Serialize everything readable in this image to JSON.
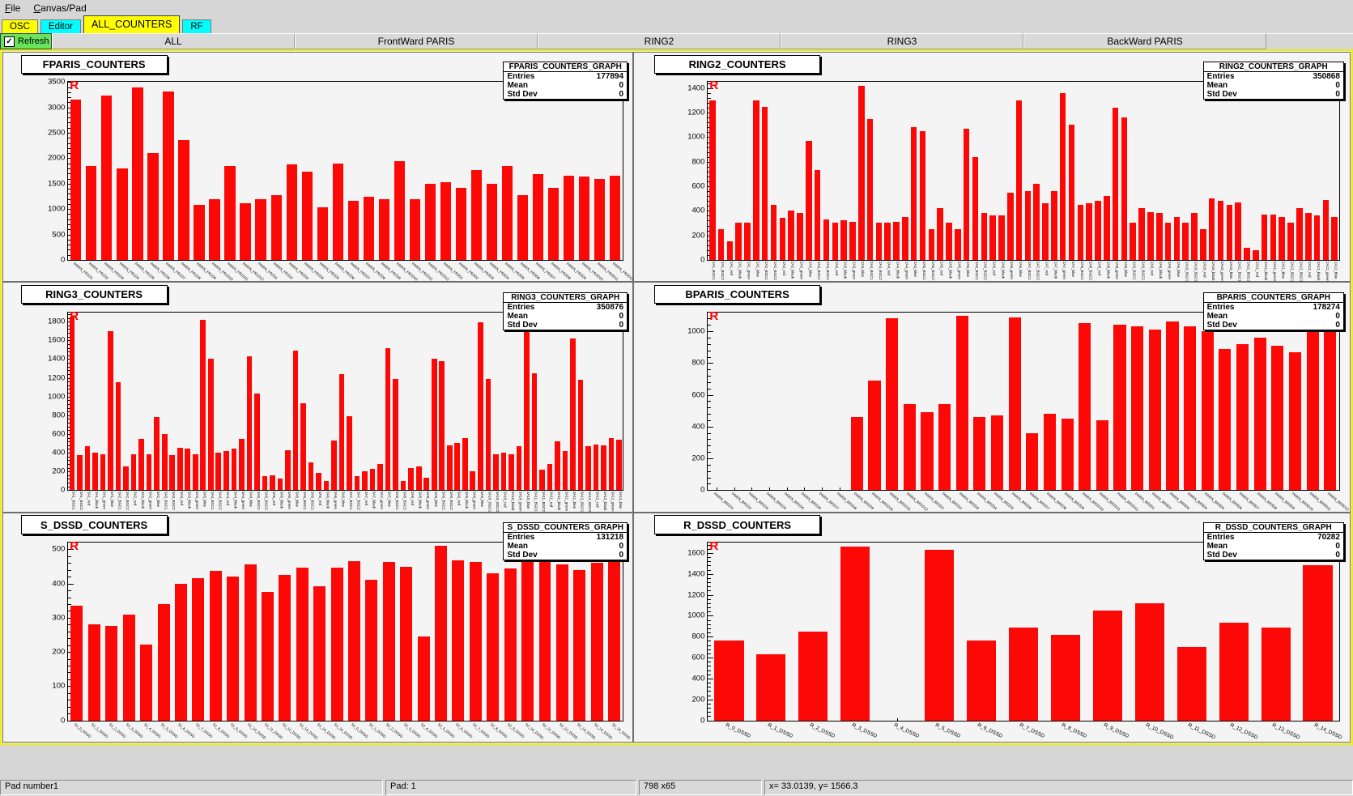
{
  "menu": {
    "items": [
      "File",
      "Canvas/Pad"
    ]
  },
  "tabs": [
    {
      "label": "OSC",
      "color": "#ffff00",
      "active": false
    },
    {
      "label": "Editor",
      "color": "#00ffff",
      "active": false
    },
    {
      "label": "ALL_COUNTERS",
      "color": "#ffff00",
      "active": true
    },
    {
      "label": "RF",
      "color": "#00ffff",
      "active": false
    }
  ],
  "refresh": {
    "label": "Refresh",
    "checked": true,
    "checkmark": "✓",
    "color": "#67e35d"
  },
  "subtabs": [
    "ALL",
    "FrontWard PARIS",
    "RING2",
    "RING3",
    "BackWard PARIS"
  ],
  "status_bar": {
    "cells": [
      "Pad number1",
      "Pad: 1",
      "798 x65",
      "x= 33.0139, y= 1566.3"
    ]
  },
  "colors": {
    "bar_red": "#fb0807",
    "canvas_highlight": "#f0f000",
    "tab_yellow": "#ffff00",
    "tab_cyan": "#00ffff"
  },
  "chart_data": [
    {
      "name": "FPARIS_COUNTERS",
      "type": "bar",
      "marker": "R",
      "bar_color": "#fb0807",
      "stats": {
        "title": "FPARIS_COUNTERS_GRAPH",
        "entries": "177894",
        "mean": "0",
        "std_dev": "0"
      },
      "ylim": [
        0,
        3500
      ],
      "ytick_step": 500,
      "label_style": "diagonal",
      "grid": false,
      "categories": [
        "PARIS_FR1D1",
        "PARIS_FR1D2",
        "PARIS_FR1D3",
        "PARIS_FR1D4",
        "PARIS_FR1D5",
        "PARIS_FR1D6",
        "PARIS_FR1D7",
        "PARIS_FR1D8",
        "PARIS_FR1D9",
        "PARIS_FR1D10",
        "PARIS_FR1D11",
        "PARIS_FR1D12",
        "PARIS_FR2D1",
        "PARIS_FR2D2",
        "PARIS_FR2D3",
        "PARIS_FR2D4",
        "PARIS_FR2D5",
        "PARIS_FR2D6",
        "PARIS_FR2D7",
        "PARIS_FR2D8",
        "PARIS_FR2D9",
        "PARIS_FR2D10",
        "PARIS_FR2D11",
        "PARIS_FR2D12",
        "PARIS_FR3D1",
        "PARIS_FR3D2",
        "PARIS_FR3D3",
        "PARIS_FR3D4",
        "PARIS_FR3D5",
        "PARIS_FR3D6",
        "PARIS_FR3D7",
        "PARIS_FR3D8",
        "PARIS_FR3D9",
        "PARIS_FR3D10",
        "PARIS_FR3D11",
        "PARIS_FR3D12"
      ],
      "values": [
        3150,
        1850,
        3230,
        1800,
        3390,
        2100,
        3310,
        2360,
        1090,
        1190,
        1840,
        1110,
        1190,
        1280,
        1880,
        1740,
        1030,
        1900,
        1170,
        1240,
        1200,
        1950,
        1190,
        1500,
        1530,
        1410,
        1770,
        1500,
        1840,
        1280,
        1690,
        1420,
        1650,
        1640,
        1600,
        1650
      ]
    },
    {
      "name": "RING2_COUNTERS",
      "type": "bar",
      "marker": "R",
      "bar_color": "#fb0807",
      "stats": {
        "title": "RING2_COUNTERS_GRAPH",
        "entries": "350868",
        "mean": "0",
        "std_dev": "0"
      },
      "ylim": [
        0,
        1450
      ],
      "ytick_step": 200,
      "label_style": "vertical",
      "grid": false,
      "categories": [
        "2A1_BGC1",
        "2A1_BGC2",
        "2A1_red",
        "2A1_black",
        "2A1_green",
        "2A1_blue",
        "2A2_BGC1",
        "2A2_BGC2",
        "2A2_red",
        "2A2_black",
        "2A2_green",
        "2A2_blue",
        "2A3_BGC1",
        "2A3_BGC2",
        "2A3_red",
        "2A3_black",
        "2A3_green",
        "2A3_blue",
        "2A4_BGC1",
        "2A4_BGC2",
        "2A4_red",
        "2A4_black",
        "2A4_green",
        "2A4_blue",
        "2A5_BGC1",
        "2A5_BGC2",
        "2A5_red",
        "2A5_black",
        "2A5_green",
        "2A5_blue",
        "2A6_BGC1",
        "2A6_BGC2",
        "2A6_red",
        "2A6_black",
        "2A6_green",
        "2A6_blue",
        "2A7_BGC1",
        "2A7_BGC2",
        "2A7_red",
        "2A7_black",
        "2A7_green",
        "2A7_blue",
        "2A8_BGC1",
        "2A8_BGC2",
        "2A8_red",
        "2A8_black",
        "2A8_green",
        "2A8_blue",
        "2A9_BGC1",
        "2A9_BGC2",
        "2A9_red",
        "2A9_black",
        "2A9_green",
        "2A9_blue",
        "2A10_BGC1",
        "2A10_BGC2",
        "2A10_red",
        "2A10_black",
        "2A10_green",
        "2A10_blue",
        "2A11_BGC1",
        "2A11_BGC2",
        "2A11_red",
        "2A11_black",
        "2A11_green",
        "2A11_blue",
        "2A12_BGC1",
        "2A12_BGC2",
        "2A12_red",
        "2A12_black",
        "2A12_green",
        "2A12_blue"
      ],
      "values": [
        1300,
        250,
        150,
        300,
        300,
        1300,
        1250,
        450,
        340,
        400,
        380,
        970,
        730,
        330,
        300,
        320,
        310,
        1420,
        1150,
        300,
        300,
        310,
        350,
        1080,
        1050,
        250,
        420,
        300,
        250,
        1070,
        840,
        380,
        360,
        360,
        550,
        1300,
        560,
        620,
        460,
        560,
        1360,
        1100,
        450,
        460,
        480,
        520,
        1240,
        1160,
        300,
        420,
        390,
        380,
        300,
        350,
        300,
        380,
        250,
        500,
        480,
        450,
        470,
        100,
        80,
        370,
        370,
        350,
        300,
        420,
        380,
        360,
        490,
        350
      ]
    },
    {
      "name": "RING3_COUNTERS",
      "type": "bar",
      "marker": "R",
      "bar_color": "#fb0807",
      "stats": {
        "title": "RING3_COUNTERS_GRAPH",
        "entries": "350876",
        "mean": "0",
        "std_dev": "0"
      },
      "ylim": [
        0,
        1900
      ],
      "ytick_step": 200,
      "label_style": "vertical",
      "grid": false,
      "categories": [
        "3A1_BGC1",
        "3A1_BGC2",
        "3A1_red",
        "3A1_black",
        "3A1_green",
        "3A1_blue",
        "3A2_BGC1",
        "3A2_BGC2",
        "3A2_red",
        "3A2_black",
        "3A2_green",
        "3A2_blue",
        "3A3_BGC1",
        "3A3_BGC2",
        "3A3_red",
        "3A3_black",
        "3A3_green",
        "3A3_blue",
        "3A4_BGC1",
        "3A4_BGC2",
        "3A4_red",
        "3A4_black",
        "3A4_green",
        "3A4_blue",
        "3A5_BGC1",
        "3A5_BGC2",
        "3A5_red",
        "3A5_black",
        "3A5_green",
        "3A5_blue",
        "3A6_BGC1",
        "3A6_BGC2",
        "3A6_red",
        "3A6_black",
        "3A6_green",
        "3A6_blue",
        "3A7_BGC1",
        "3A7_BGC2",
        "3A7_red",
        "3A7_black",
        "3A7_green",
        "3A7_blue",
        "3A8_BGC1",
        "3A8_BGC2",
        "3A8_red",
        "3A8_black",
        "3A8_green",
        "3A8_blue",
        "3A9_BGC1",
        "3A9_BGC2",
        "3A9_red",
        "3A9_black",
        "3A9_green",
        "3A9_blue",
        "3A10_BGC1",
        "3A10_BGC2",
        "3A10_red",
        "3A10_black",
        "3A10_green",
        "3A10_blue",
        "3A11_BGC1",
        "3A11_BGC2",
        "3A11_red",
        "3A11_black",
        "3A11_green",
        "3A11_blue",
        "3A12_BGC1",
        "3A12_BGC2",
        "3A12_red",
        "3A12_black",
        "3A12_green",
        "3A12_blue"
      ],
      "values": [
        1850,
        370,
        470,
        400,
        380,
        1700,
        1150,
        250,
        380,
        550,
        380,
        780,
        600,
        370,
        450,
        440,
        380,
        1820,
        1400,
        400,
        420,
        440,
        550,
        1430,
        1030,
        150,
        160,
        120,
        430,
        1490,
        930,
        300,
        180,
        100,
        530,
        1240,
        790,
        150,
        200,
        230,
        280,
        1520,
        1190,
        100,
        240,
        250,
        130,
        1400,
        1380,
        480,
        500,
        560,
        200,
        1790,
        1190,
        380,
        400,
        380,
        470,
        1760,
        1250,
        220,
        280,
        520,
        420,
        1620,
        1180,
        470,
        490,
        480,
        560,
        540
      ]
    },
    {
      "name": "BPARIS_COUNTERS",
      "type": "bar",
      "marker": "R",
      "bar_color": "#fb0807",
      "stats": {
        "title": "BPARIS_COUNTERS_GRAPH",
        "entries": "178274",
        "mean": "0",
        "std_dev": "0"
      },
      "ylim": [
        0,
        1120
      ],
      "ytick_step": 200,
      "label_style": "diagonal",
      "grid": false,
      "categories": [
        "PARIS_BR1D1",
        "PARIS_BR1D2",
        "PARIS_BR1D3",
        "PARIS_BR1D4",
        "PARIS_BR1D5",
        "PARIS_BR1D6",
        "PARIS_BR1D7",
        "PARIS_BR1D8",
        "PARIS_BR1D9",
        "PARIS_BR1D10",
        "PARIS_BR1D11",
        "PARIS_BR1D12",
        "PARIS_BR2D1",
        "PARIS_BR2D2",
        "PARIS_BR2D3",
        "PARIS_BR2D4",
        "PARIS_BR2D5",
        "PARIS_BR2D6",
        "PARIS_BR2D7",
        "PARIS_BR2D8",
        "PARIS_BR2D9",
        "PARIS_BR2D10",
        "PARIS_BR2D11",
        "PARIS_BR2D12",
        "PARIS_BR3D1",
        "PARIS_BR3D2",
        "PARIS_BR3D3",
        "PARIS_BR3D4",
        "PARIS_BR3D5",
        "PARIS_BR3D6",
        "PARIS_BR3D7",
        "PARIS_BR3D8",
        "PARIS_BR3D9",
        "PARIS_BR3D10",
        "PARIS_BR3D11",
        "PARIS_BR3D12"
      ],
      "values": [
        0,
        0,
        0,
        0,
        0,
        0,
        0,
        0,
        460,
        690,
        1080,
        540,
        490,
        540,
        1100,
        460,
        470,
        1090,
        360,
        480,
        450,
        1050,
        440,
        1040,
        1030,
        1010,
        1060,
        1030,
        1000,
        890,
        920,
        960,
        910,
        870,
        1080,
        1060
      ]
    },
    {
      "name": "S_DSSD_COUNTERS",
      "type": "bar",
      "marker": "R",
      "bar_color": "#fb0807",
      "stats": {
        "title": "S_DSSD_COUNTERS_GRAPH",
        "entries": "131218",
        "mean": "0",
        "std_dev": "0"
      },
      "ylim": [
        0,
        520
      ],
      "ytick_step": 100,
      "label_style": "diagonal",
      "grid": false,
      "categories": [
        "S1_0_DSSD",
        "S1_1_DSSD",
        "S1_2_DSSD",
        "S1_3_DSSD",
        "S1_4_DSSD",
        "S1_5_DSSD",
        "S1_6_DSSD",
        "S1_7_DSSD",
        "S1_8_DSSD",
        "S1_9_DSSD",
        "S1_10_DSSD",
        "S1_11_DSSD",
        "S1_12_DSSD",
        "S1_13_DSSD",
        "S1_14_DSSD",
        "S1_15_DSSD",
        "S2_0_DSSD",
        "S2_1_DSSD",
        "S2_2_DSSD",
        "S2_3_DSSD",
        "S2_4_DSSD",
        "S2_5_DSSD",
        "S2_6_DSSD",
        "S2_7_DSSD",
        "S2_8_DSSD",
        "S2_9_DSSD",
        "S2_10_DSSD",
        "S2_11_DSSD",
        "S2_12_DSSD",
        "S2_13_DSSD",
        "S2_14_DSSD",
        "S2_15_DSSD"
      ],
      "values": [
        335,
        280,
        275,
        310,
        222,
        340,
        400,
        415,
        437,
        420,
        455,
        376,
        425,
        447,
        393,
        447,
        466,
        410,
        462,
        450,
        245,
        510,
        467,
        462,
        430,
        445,
        466,
        470,
        455,
        440,
        460,
        468
      ]
    },
    {
      "name": "R_DSSD_COUNTERS",
      "type": "bar",
      "marker": "R",
      "bar_color": "#fb0807",
      "stats": {
        "title": "R_DSSD_COUNTERS_GRAPH",
        "entries": "70282",
        "mean": "0",
        "std_dev": "0"
      },
      "ylim": [
        0,
        1700
      ],
      "ytick_step": 200,
      "label_style": "slight",
      "grid": false,
      "categories": [
        "R_0_DSSD",
        "R_1_DSSD",
        "R_2_DSSD",
        "R_3_DSSD",
        "R_4_DSSD",
        "R_5_DSSD",
        "R_6_DSSD",
        "R_7_DSSD",
        "R_8_DSSD",
        "R_9_DSSD",
        "R_10_DSSD",
        "R_11_DSSD",
        "R_12_DSSD",
        "R_13_DSSD",
        "R_14_DSSD"
      ],
      "values": [
        760,
        630,
        850,
        1660,
        0,
        1630,
        760,
        890,
        820,
        1050,
        1120,
        700,
        930,
        890,
        1480
      ]
    }
  ]
}
